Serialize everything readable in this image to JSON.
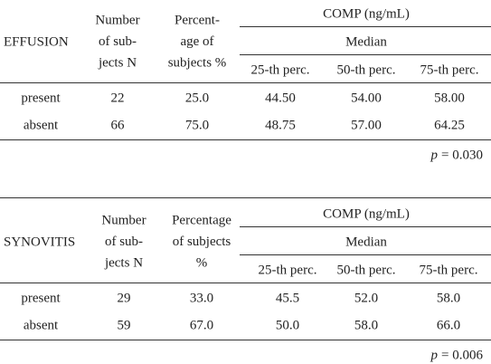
{
  "tables": [
    {
      "row_header": "EFFUSION",
      "col1_header": [
        "Number",
        "of sub-",
        "jects N"
      ],
      "col2_header": [
        "Percent-",
        "age of",
        "subjects %"
      ],
      "group_header": "COMP (ng/mL)",
      "subgroup_header": "Median",
      "percentile_headers": [
        "25-th perc.",
        "50-th perc.",
        "75-th perc."
      ],
      "rows": [
        [
          "present",
          "22",
          "25.0",
          "44.50",
          "54.00",
          "58.00"
        ],
        [
          "absent",
          "66",
          "75.0",
          "48.75",
          "57.00",
          "64.25"
        ]
      ],
      "p_symbol": "p",
      "p_value": "= 0.030"
    },
    {
      "row_header": "SYNOVITIS",
      "col1_header": [
        "Number",
        "of sub-",
        "jects N"
      ],
      "col2_header": [
        "Percentage",
        "of subjects",
        "%"
      ],
      "group_header": "COMP (ng/mL)",
      "subgroup_header": "Median",
      "percentile_headers": [
        "25-th perc.",
        "50-th perc.",
        "75-th perc."
      ],
      "rows": [
        [
          "present",
          "29",
          "33.0",
          "45.5",
          "52.0",
          "58.0"
        ],
        [
          "absent",
          "59",
          "67.0",
          "50.0",
          "58.0",
          "66.0"
        ]
      ],
      "p_symbol": "p",
      "p_value": "= 0.006"
    }
  ]
}
